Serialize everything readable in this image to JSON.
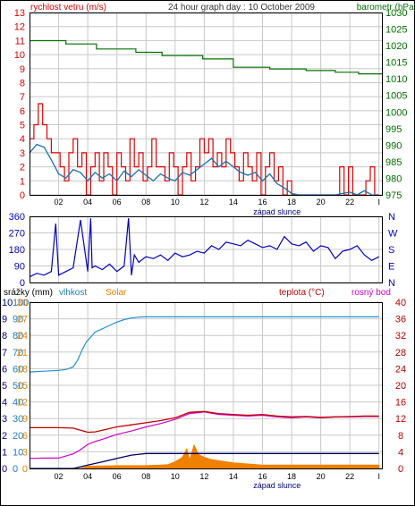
{
  "header": {
    "left_title": "rychlost vetru (m/s)",
    "center_title": "24 hour graph day : 10 October 2009",
    "right_title": "barometr (hPa)"
  },
  "colors": {
    "wind_speed": "#e00000",
    "wind_avg": "#1870b0",
    "barometer": "#007000",
    "wind_dir": "#0000c0",
    "humidity": "#2090d0",
    "solar": "#f08000",
    "rain": "#000060",
    "temperature": "#c00000",
    "dew_point": "#d000d0",
    "grid": "#c8c8c8",
    "left_axis": "#e00000",
    "right_axis_baro": "#007000",
    "humidity_axis": "#2080c0",
    "temp_axis": "#c00000"
  },
  "chart_data": [
    {
      "type": "line",
      "title": "24 hour graph day : 10 October 2009",
      "xlabel": "západ slunce",
      "x_ticks": [
        "02",
        "04",
        "06",
        "08",
        "10",
        "12",
        "14",
        "16",
        "18",
        "20",
        "22",
        "I"
      ],
      "y_left": {
        "label": "rychlost vetru (m/s)",
        "ylim": [
          0,
          13
        ],
        "ticks": [
          "0",
          "1",
          "2",
          "3",
          "4",
          "5",
          "6",
          "7",
          "8",
          "9",
          "10",
          "11",
          "12",
          "13"
        ]
      },
      "y_right": {
        "label": "barometr (hPa)",
        "ylim": [
          975,
          1030
        ],
        "ticks": [
          "975",
          "980",
          "985",
          "990",
          "995",
          "1000",
          "1005",
          "1010",
          "1015",
          "1020",
          "1025",
          "1030"
        ]
      },
      "series": [
        {
          "name": "barometr (hPa)",
          "x": [
            0,
            2.2,
            2.5,
            4.3,
            4.6,
            7.0,
            7.3,
            8.8,
            9.1,
            11.5,
            11.9,
            13.6,
            14.0,
            16.0,
            16.5,
            18.5,
            19.0,
            20.5,
            21.0,
            22.2,
            22.6,
            24.2
          ],
          "y": [
            1021.5,
            1021.5,
            1020.5,
            1020.5,
            1019,
            1019,
            1018,
            1018,
            1017,
            1017,
            1016,
            1016,
            1013.5,
            1013.5,
            1013,
            1013,
            1012.5,
            1012.5,
            1012,
            1012,
            1011.5,
            1011.5
          ]
        },
        {
          "name": "rychlost vetru (m/s) - gust",
          "x": [
            0,
            0.3,
            0.6,
            0.9,
            1.2,
            1.5,
            1.8,
            2.1,
            2.4,
            2.7,
            3.0,
            3.3,
            3.6,
            3.9,
            4.2,
            4.5,
            4.8,
            5.1,
            5.4,
            5.7,
            6.0,
            6.3,
            6.6,
            6.9,
            7.2,
            7.5,
            7.8,
            8.1,
            8.4,
            8.7,
            9.0,
            9.3,
            9.6,
            9.9,
            10.2,
            10.5,
            10.8,
            11.1,
            11.4,
            11.7,
            12.0,
            12.3,
            12.6,
            12.9,
            13.2,
            13.5,
            13.8,
            14.1,
            14.4,
            14.7,
            15.0,
            15.3,
            15.6,
            15.9,
            16.2,
            16.5,
            16.8,
            17.1,
            17.4,
            17.7,
            18.0,
            18.3,
            18.6,
            18.9,
            19.2,
            19.5,
            19.8,
            20.1,
            20.4,
            20.7,
            21.0,
            21.3,
            21.6,
            21.9,
            22.2,
            22.5,
            22.8,
            23.1,
            23.4,
            23.7,
            24.0
          ],
          "y": [
            4,
            5,
            6.5,
            5,
            4,
            3,
            3,
            2,
            1,
            3,
            4,
            2,
            3,
            0,
            2,
            3,
            1,
            3,
            2,
            0,
            3,
            2,
            1,
            4,
            2,
            3,
            1,
            2,
            4,
            2,
            2,
            1,
            3,
            2,
            0,
            2,
            3,
            1,
            2,
            4,
            3,
            4,
            2,
            3,
            2,
            4,
            3,
            2,
            1,
            3,
            2,
            1,
            3,
            0,
            2,
            3,
            1,
            2,
            0,
            1,
            0,
            0,
            0,
            0,
            0,
            0,
            0,
            0,
            0,
            0,
            0,
            2,
            0,
            2,
            0,
            0,
            0,
            1,
            2,
            0,
            0
          ]
        },
        {
          "name": "rychlost vetru (m/s) - average",
          "x": [
            0,
            0.5,
            1.0,
            1.5,
            2.0,
            2.5,
            3.0,
            3.5,
            4.0,
            4.5,
            5.0,
            5.5,
            6.0,
            6.5,
            7.0,
            7.5,
            8.0,
            8.5,
            9.0,
            9.5,
            10.0,
            10.5,
            11.0,
            11.5,
            12.0,
            12.5,
            13.0,
            13.5,
            14.0,
            14.5,
            15.0,
            15.5,
            16.0,
            16.5,
            17.0,
            17.5,
            18.0,
            18.5,
            19.0,
            20.0,
            21.0,
            22.0,
            22.5,
            23.0,
            23.5,
            24.0
          ],
          "y": [
            3,
            3.6,
            3.4,
            2.5,
            1.5,
            1.2,
            1.8,
            1.6,
            1.0,
            1.6,
            1.2,
            1.5,
            1.0,
            1.7,
            1.3,
            1.8,
            1.4,
            1.0,
            1.5,
            1.2,
            1.0,
            1.6,
            1.4,
            1.8,
            2.2,
            2.6,
            2.0,
            2.4,
            2.0,
            1.6,
            1.4,
            1.6,
            1.0,
            1.5,
            0.8,
            0.5,
            0.1,
            0,
            0,
            0,
            0,
            0.2,
            0,
            0.3,
            0,
            0
          ]
        }
      ]
    },
    {
      "type": "line",
      "title": "",
      "x_ticks": [
        "02",
        "04",
        "06",
        "08",
        "10",
        "12",
        "14",
        "16",
        "18",
        "20",
        "22",
        "I"
      ],
      "y_left": {
        "ylim": [
          0,
          360
        ],
        "ticks": [
          "0",
          "90",
          "180",
          "270",
          "360"
        ]
      },
      "y_right": {
        "ticks": [
          "N",
          "E",
          "S",
          "W",
          "N"
        ]
      },
      "series": [
        {
          "name": "wind direction",
          "x": [
            0,
            0.5,
            1.0,
            1.5,
            1.8,
            2.0,
            2.5,
            3.0,
            3.5,
            4.0,
            4.2,
            4.3,
            4.5,
            5.0,
            5.5,
            6.0,
            6.5,
            6.8,
            7.0,
            7.2,
            7.5,
            8.0,
            8.5,
            9.0,
            9.5,
            10.0,
            10.5,
            11.0,
            11.5,
            12.0,
            12.5,
            13.0,
            13.5,
            14.0,
            14.5,
            15.0,
            15.5,
            16.0,
            16.5,
            17.0,
            17.5,
            18.0,
            18.5,
            19.0,
            19.5,
            20.0,
            20.5,
            21.0,
            21.5,
            22.0,
            22.5,
            23.0,
            23.5,
            24.0
          ],
          "y": [
            30,
            50,
            40,
            60,
            320,
            40,
            60,
            80,
            340,
            60,
            350,
            80,
            90,
            70,
            100,
            60,
            90,
            350,
            40,
            150,
            110,
            140,
            130,
            150,
            120,
            160,
            140,
            150,
            170,
            160,
            200,
            180,
            220,
            210,
            200,
            230,
            210,
            190,
            200,
            180,
            250,
            210,
            200,
            220,
            170,
            200,
            190,
            130,
            170,
            180,
            200,
            150,
            120,
            140
          ]
        }
      ]
    },
    {
      "type": "line",
      "title": "",
      "xlabel": "západ slunce",
      "x_ticks": [
        "02",
        "04",
        "06",
        "08",
        "10",
        "12",
        "14",
        "16",
        "18",
        "20",
        "22",
        "I"
      ],
      "y_left_rain": {
        "label": "srážky (mm)",
        "ticks": [
          "0",
          "1",
          "2",
          "3",
          "4",
          "5",
          "6",
          "7",
          "8",
          "9",
          "10"
        ]
      },
      "y_left_humidity": {
        "label": "vlhkost",
        "ticks": [
          "0",
          "10",
          "20",
          "30",
          "40",
          "50",
          "60",
          "70",
          "80",
          "90",
          "100"
        ]
      },
      "y_left_solar": {
        "label": "Solar",
        "ticks": [
          "0",
          "3",
          "6",
          "9",
          "12",
          "15",
          "18",
          "21",
          "24",
          "27",
          "30"
        ]
      },
      "y_right": {
        "label": "teplota (°C)",
        "ylim": [
          0,
          40
        ],
        "ticks": [
          "0",
          "4",
          "8",
          "12",
          "16",
          "20",
          "24",
          "28",
          "32",
          "36",
          "40"
        ]
      },
      "legend_dew": "rosný bod",
      "series": [
        {
          "name": "vlhkost",
          "x": [
            0,
            1.0,
            2.0,
            2.5,
            3.0,
            3.3,
            3.6,
            3.9,
            4.2,
            4.5,
            5.0,
            5.5,
            6.0,
            6.5,
            7.0,
            7.5,
            8.0,
            9.0,
            10.0,
            12.0,
            14.0,
            16.0,
            18.0,
            20.0,
            22.0,
            24.0
          ],
          "y": [
            58,
            58.5,
            59,
            59.5,
            61,
            65,
            71,
            76,
            79,
            82,
            84,
            86,
            88,
            89.5,
            90.5,
            91,
            91.2,
            91.2,
            91.2,
            91.2,
            91.2,
            91.2,
            91.2,
            91.2,
            91.2,
            91.2
          ]
        },
        {
          "name": "teplota (°C)",
          "x": [
            0,
            1.0,
            2.0,
            3.0,
            3.5,
            4.0,
            4.5,
            5.0,
            6.0,
            7.0,
            8.0,
            9.0,
            10.0,
            11.0,
            12.0,
            13.0,
            14.0,
            15.0,
            16.0,
            17.0,
            18.0,
            19.0,
            20.0,
            21.0,
            22.0,
            23.0,
            24.0
          ],
          "y": [
            9.8,
            9.8,
            9.8,
            9.7,
            9.2,
            8.7,
            8.8,
            9.2,
            10.0,
            10.5,
            11.0,
            11.5,
            12.2,
            13.5,
            13.7,
            13.2,
            13.0,
            12.8,
            13.0,
            12.6,
            12.4,
            12.5,
            12.3,
            12.4,
            12.5,
            12.6,
            12.6
          ]
        },
        {
          "name": "rosný bod",
          "x": [
            0,
            1.0,
            2.0,
            2.5,
            3.0,
            3.5,
            4.0,
            4.5,
            5.0,
            6.0,
            7.0,
            8.0,
            9.0,
            10.0,
            11.0,
            12.0,
            13.0,
            14.0,
            15.0,
            16.0,
            17.0,
            18.0,
            19.0,
            20.0,
            21.0,
            22.0,
            23.0,
            24.0
          ],
          "y": [
            2.4,
            2.5,
            2.5,
            3.0,
            3.5,
            4.5,
            5.8,
            6.5,
            7.0,
            8.2,
            9.0,
            10.0,
            10.8,
            11.8,
            13.2,
            13.6,
            13.0,
            12.8,
            12.6,
            12.8,
            12.4,
            12.2,
            12.4,
            12.2,
            12.4,
            12.4,
            12.5,
            12.5
          ]
        },
        {
          "name": "Solar",
          "x": [
            0,
            3.5,
            4.0,
            6.0,
            8.0,
            9.0,
            9.5,
            10.0,
            10.5,
            10.8,
            11.0,
            11.3,
            11.6,
            12.0,
            12.5,
            13.0,
            13.5,
            14.0,
            15.0,
            16.0,
            17.0,
            20.0,
            24.0
          ],
          "y": [
            0,
            0,
            0.4,
            0.5,
            0.5,
            0.6,
            0.7,
            1.2,
            2.0,
            3.5,
            1.5,
            4.2,
            2.5,
            2.0,
            1.6,
            1.4,
            1.2,
            1.0,
            0.8,
            0.6,
            0.6,
            0.6,
            0.6
          ]
        },
        {
          "name": "srážky (mm)",
          "x": [
            0,
            3.0,
            3.5,
            4.0,
            5.0,
            6.0,
            7.0,
            8.0,
            24.0
          ],
          "y": [
            0,
            0,
            0.1,
            0.2,
            0.4,
            0.6,
            0.8,
            0.9,
            0.9
          ]
        }
      ]
    }
  ]
}
